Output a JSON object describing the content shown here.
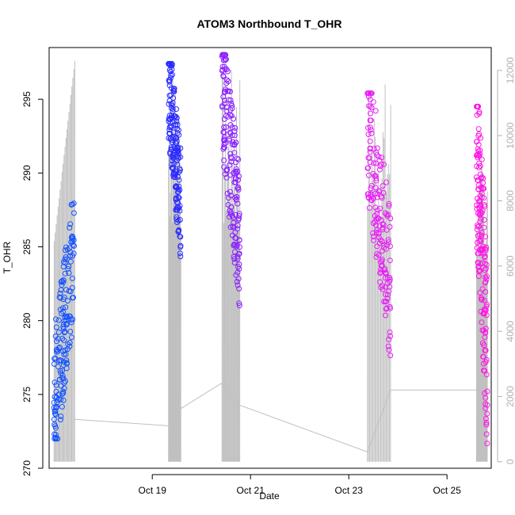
{
  "chart_data": {
    "type": "scatter",
    "title": "ATOM3 Northbound T_OHR",
    "xlabel": "Date",
    "ylabel": "T_OHR",
    "ylim": [
      270,
      298.5
    ],
    "y2lim": [
      -200,
      12700
    ],
    "x_range_days": [
      16.9,
      25.9
    ],
    "x_ticks": [
      {
        "day": 19,
        "label": "Oct 19"
      },
      {
        "day": 21,
        "label": "Oct 21"
      },
      {
        "day": 23,
        "label": "Oct 23"
      },
      {
        "day": 25,
        "label": "Oct 25"
      }
    ],
    "y_ticks": [
      {
        "value": 270,
        "label": "270"
      },
      {
        "value": 275,
        "label": "275"
      },
      {
        "value": 280,
        "label": "280"
      },
      {
        "value": 285,
        "label": "285"
      },
      {
        "value": 290,
        "label": "290"
      },
      {
        "value": 295,
        "label": "295"
      }
    ],
    "y2_ticks": [
      {
        "value": 0,
        "label": "0"
      },
      {
        "value": 2000,
        "label": "2000"
      },
      {
        "value": 4000,
        "label": "4000"
      },
      {
        "value": 6000,
        "label": "6000"
      },
      {
        "value": 8000,
        "label": "8000"
      },
      {
        "value": 10000,
        "label": "10000"
      },
      {
        "value": 12000,
        "label": "12000"
      }
    ],
    "grid": false,
    "legend": "none",
    "series": [
      {
        "color": "#1452ff",
        "x_range": [
          17.0,
          17.42
        ],
        "y_range": [
          272.0,
          289.1
        ],
        "trend": "rising"
      },
      {
        "color": "#2a2aff",
        "x_range": [
          19.33,
          19.58
        ],
        "y_range": [
          283.8,
          297.4
        ],
        "trend": "falling"
      },
      {
        "color": "#8a1fff",
        "x_range": [
          20.42,
          20.78
        ],
        "y_range": [
          280.3,
          298.0
        ],
        "trend": "falling"
      },
      {
        "color": "#e61ff5",
        "x_range": [
          23.38,
          23.85
        ],
        "y_range": [
          276.8,
          295.4
        ],
        "trend": "falling"
      },
      {
        "color": "#ff14e6",
        "x_range": [
          25.6,
          25.82
        ],
        "y_range": [
          270.8,
          294.5
        ],
        "trend": "falling"
      }
    ],
    "altitude_series": {
      "axis": "right",
      "color": "#c0c0c0",
      "baseline_points": [
        {
          "x": 17.42,
          "y": 1300
        },
        {
          "x": 19.35,
          "y": 1100
        },
        {
          "x": 19.55,
          "y": 1600
        },
        {
          "x": 20.4,
          "y": 2400
        },
        {
          "x": 20.75,
          "y": 1750
        },
        {
          "x": 23.38,
          "y": 300
        },
        {
          "x": 23.85,
          "y": 2200
        },
        {
          "x": 25.6,
          "y": 2200
        }
      ],
      "flights": [
        {
          "x_range": [
            17.0,
            17.42
          ],
          "peak": 12300
        },
        {
          "x_range": [
            19.33,
            19.58
          ],
          "peak": 12500
        },
        {
          "x_range": [
            20.42,
            20.78
          ],
          "peak": 12100
        },
        {
          "x_range": [
            23.38,
            23.85
          ],
          "peak": 11800
        },
        {
          "x_range": [
            25.6,
            25.82
          ],
          "peak": 9400
        }
      ]
    }
  }
}
